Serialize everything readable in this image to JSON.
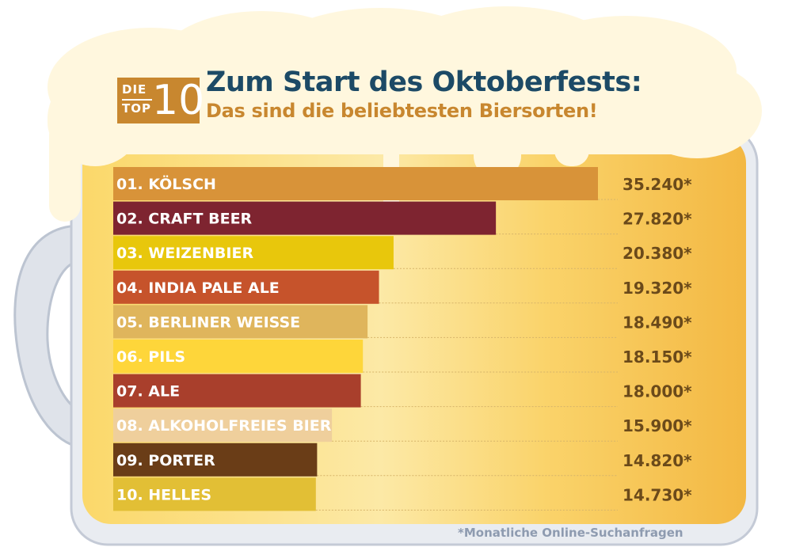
{
  "header": {
    "badge_die": "DIE",
    "badge_top": "TOP",
    "badge_ten": "10",
    "title": "Zum Start des Oktoberfests:",
    "subtitle": "Das sind die beliebtesten Biersorten!"
  },
  "footnote": "*Monatliche Online-Suchanfragen",
  "chart_data": {
    "type": "bar",
    "orientation": "horizontal",
    "categories": [
      "01. KÖLSCH",
      "02. CRAFT BEER",
      "03. WEIZENBIER",
      "04. INDIA PALE ALE",
      "05. BERLINER WEISSE",
      "06. PILS",
      "07.  ALE",
      "08. ALKOHOLFREIES BIER",
      "09. PORTER",
      "10. HELLES"
    ],
    "values": [
      35240,
      27820,
      20380,
      19320,
      18490,
      18150,
      18000,
      15900,
      14820,
      14730
    ],
    "value_labels": [
      "35.240*",
      "27.820*",
      "20.380*",
      "19.320*",
      "18.490*",
      "18.150*",
      "18.000*",
      "15.900*",
      "14.820*",
      "14.730*"
    ],
    "bar_colors": [
      "#d89339",
      "#7e2430",
      "#e8c70c",
      "#c6532b",
      "#dfb55c",
      "#fed63a",
      "#a93f2c",
      "#efcf9c",
      "#6a3d17",
      "#e2bf35"
    ],
    "label_colors": [
      "#ffffff",
      "#ffffff",
      "#ffffff",
      "#ffffff",
      "#ffffff",
      "#ffffff",
      "#ffffff",
      "#ffffff",
      "#ffffff",
      "#ffffff"
    ],
    "value_color": "#6b4a1a",
    "xlim": [
      0,
      35240
    ],
    "grid": true,
    "legend": "none"
  }
}
